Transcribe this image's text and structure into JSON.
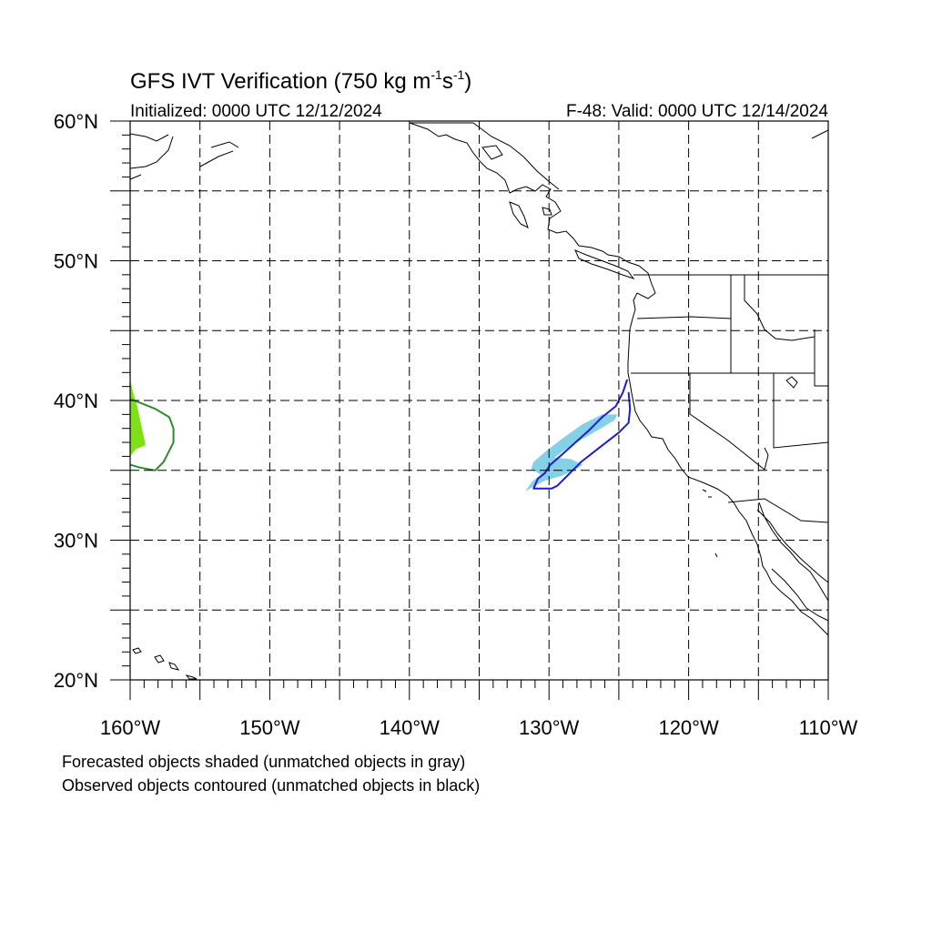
{
  "title": {
    "main": "GFS IVT Verification (750 kg m",
    "exp1": "-1",
    "mid": "s",
    "exp2": "-1",
    "close": ")"
  },
  "subtitle_left": "Initialized: 0000 UTC 12/12/2024",
  "subtitle_right": "F-48: Valid: 0000 UTC 12/14/2024",
  "map": {
    "lon_range": [
      -160,
      -110
    ],
    "lat_range": [
      20,
      60
    ],
    "gridlines": "dashed",
    "grid_lon": [
      -155,
      -150,
      -145,
      -140,
      -135,
      -130,
      -125,
      -120,
      -115
    ],
    "grid_lat": [
      25,
      30,
      35,
      40,
      45,
      50,
      55
    ],
    "x_ticks": [
      "160°W",
      "150°W",
      "140°W",
      "130°W",
      "120°W",
      "110°W"
    ],
    "y_ticks": [
      "60°N",
      "50°N",
      "40°N",
      "30°N",
      "20°N"
    ]
  },
  "objects": {
    "forecast_shaded": [
      {
        "color": "#84d0e6",
        "lonlat": [
          [
            -131.7,
            33.5
          ],
          [
            -130.8,
            34.0
          ],
          [
            -130.2,
            34.3
          ],
          [
            -129.1,
            34.6
          ],
          [
            -128.2,
            35.0
          ],
          [
            -127.6,
            35.4
          ],
          [
            -128.4,
            35.8
          ],
          [
            -129.6,
            35.9
          ],
          [
            -128.8,
            36.5
          ],
          [
            -127.5,
            37.3
          ],
          [
            -126.3,
            38.0
          ],
          [
            -125.3,
            38.6
          ],
          [
            -125.1,
            39.0
          ],
          [
            -126.2,
            39.0
          ],
          [
            -127.6,
            38.3
          ],
          [
            -129.0,
            37.3
          ],
          [
            -130.3,
            36.3
          ],
          [
            -131.1,
            35.6
          ],
          [
            -131.3,
            35.1
          ],
          [
            -130.6,
            34.7
          ],
          [
            -131.2,
            34.2
          ]
        ]
      },
      {
        "color": "#7fe01a",
        "lonlat": [
          [
            -160,
            41.5
          ],
          [
            -159.8,
            40.6
          ],
          [
            -159.5,
            39.6
          ],
          [
            -159.3,
            38.7
          ],
          [
            -159.0,
            37.3
          ],
          [
            -158.9,
            36.8
          ],
          [
            -159.6,
            36.5
          ],
          [
            -160,
            36.0
          ]
        ]
      }
    ],
    "observed_contoured": [
      {
        "color": "#1c1cd8",
        "lonlat": [
          [
            -124.4,
            41.5
          ],
          [
            -124.7,
            40.6
          ],
          [
            -125.2,
            39.6
          ],
          [
            -126.2,
            38.8
          ],
          [
            -127.1,
            37.9
          ],
          [
            -128.1,
            37.0
          ],
          [
            -129.1,
            36.1
          ],
          [
            -129.9,
            35.4
          ],
          [
            -130.3,
            34.8
          ],
          [
            -130.8,
            34.4
          ],
          [
            -131.1,
            33.7
          ],
          [
            -130.4,
            33.7
          ],
          [
            -129.8,
            33.7
          ],
          [
            -129.4,
            33.9
          ],
          [
            -128.7,
            34.6
          ],
          [
            -127.7,
            35.6
          ],
          [
            -126.3,
            36.7
          ],
          [
            -125.0,
            37.7
          ],
          [
            -124.3,
            38.4
          ],
          [
            -124.2,
            39.4
          ],
          [
            -124.3,
            40.6
          ]
        ]
      },
      {
        "color": "#2e8b2e",
        "lonlat": [
          [
            -160,
            40.1
          ],
          [
            -159.2,
            39.8
          ],
          [
            -158.2,
            39.4
          ],
          [
            -157.2,
            38.8
          ],
          [
            -156.9,
            38.0
          ],
          [
            -156.9,
            37.0
          ],
          [
            -157.3,
            36.2
          ],
          [
            -157.6,
            35.6
          ],
          [
            -158.2,
            35.0
          ],
          [
            -159.3,
            35.2
          ],
          [
            -160,
            35.4
          ]
        ]
      }
    ]
  },
  "footer": {
    "line1": "Forecasted objects shaded (unmatched objects in gray)",
    "line2": "Observed objects contoured (unmatched objects in black)"
  }
}
